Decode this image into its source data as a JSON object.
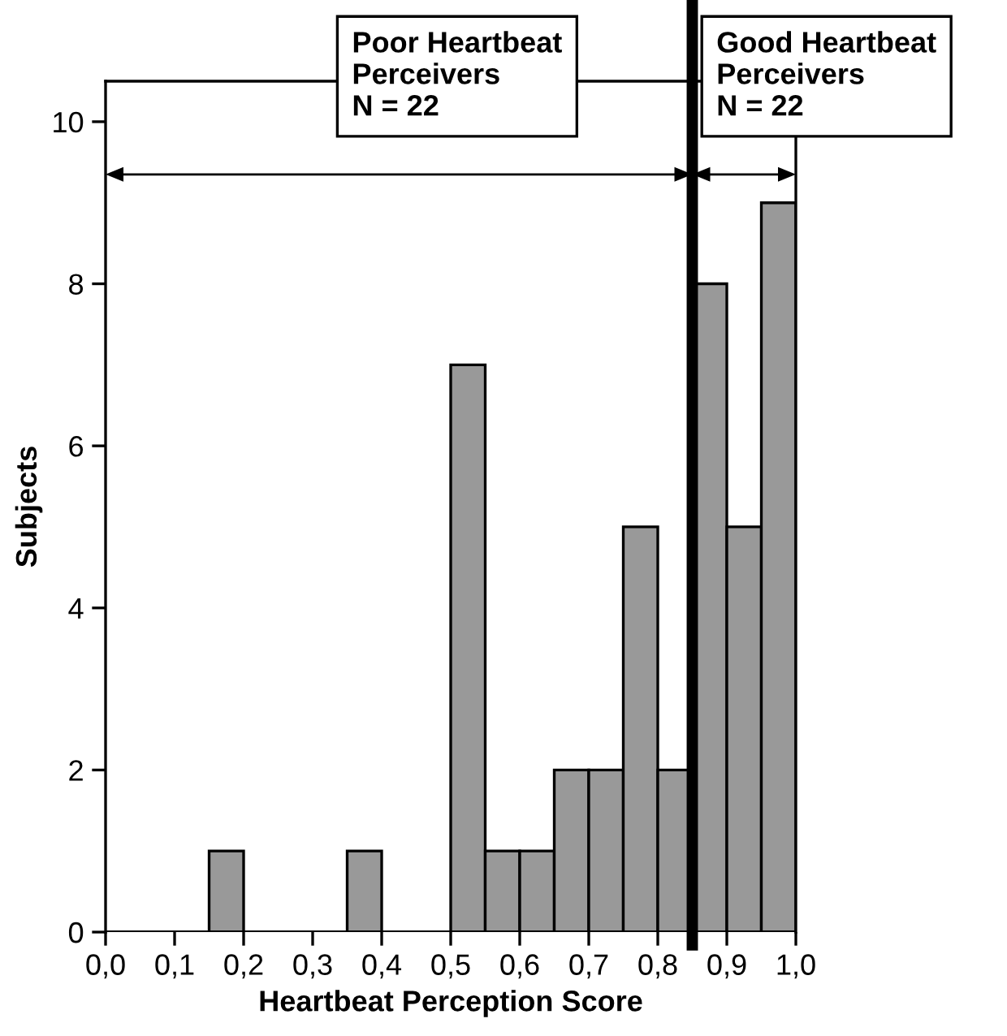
{
  "chart_data": {
    "type": "histogram",
    "xlabel": "Heartbeat Perception Score",
    "ylabel": "Subjects",
    "bins": [
      0,
      0.05,
      0.1,
      0.15,
      0.2,
      0.25,
      0.3,
      0.35,
      0.4,
      0.45,
      0.5,
      0.55,
      0.6,
      0.65,
      0.7,
      0.75,
      0.8,
      0.85,
      0.9,
      0.95,
      1.0
    ],
    "values": [
      0,
      0,
      0,
      1,
      0,
      0,
      0,
      1,
      0,
      0,
      7,
      1,
      1,
      2,
      2,
      5,
      2,
      8,
      5,
      9
    ],
    "color": "#999999",
    "xlim": [
      0,
      1
    ],
    "ylim": [
      0,
      10.5
    ],
    "xticks": [
      {
        "value": 0,
        "label": "0,0"
      },
      {
        "value": 0.1,
        "label": "0,1"
      },
      {
        "value": 0.2,
        "label": "0,2"
      },
      {
        "value": 0.3,
        "label": "0,3"
      },
      {
        "value": 0.4,
        "label": "0,4"
      },
      {
        "value": 0.5,
        "label": "0,5"
      },
      {
        "value": 0.6,
        "label": "0,6"
      },
      {
        "value": 0.7,
        "label": "0,7"
      },
      {
        "value": 0.8,
        "label": "0,8"
      },
      {
        "value": 0.9,
        "label": "0,9"
      },
      {
        "value": 1.0,
        "label": "1,0"
      }
    ],
    "yticks": [
      0,
      2,
      4,
      6,
      8,
      10
    ],
    "ref_lines": [
      {
        "axis": "x",
        "value": 0.85,
        "color": "#000000"
      }
    ],
    "annotations": [
      "Poor Heartbeat\nPerceivers\nN = 22",
      "Good Heartbeat\nPerceivers\nN = 22"
    ],
    "grid": false,
    "legend": false
  }
}
